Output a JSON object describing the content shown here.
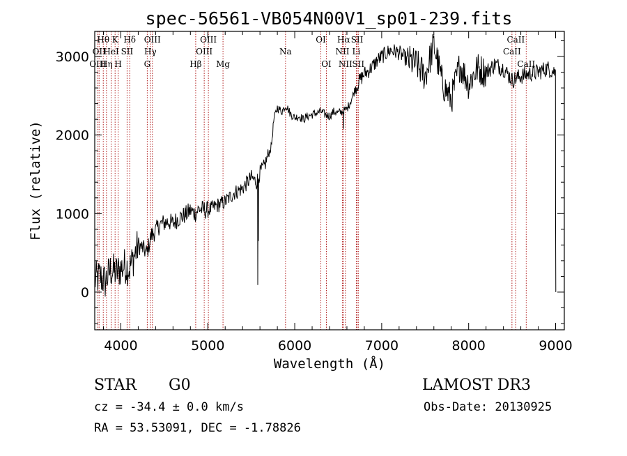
{
  "chart_data": {
    "type": "line",
    "title": "spec-56561-VB054N00V1_sp01-239.fits",
    "xlabel": "Wavelength (Å)",
    "ylabel": "Flux (relative)",
    "xlim": [
      3700,
      9100
    ],
    "ylim": [
      -480,
      3320
    ],
    "x_ticks": [
      4000,
      5000,
      6000,
      7000,
      8000,
      9000
    ],
    "y_ticks": [
      0,
      1000,
      2000,
      3000
    ],
    "spectrum_anchors": [
      [
        3700,
        150
      ],
      [
        3760,
        200
      ],
      [
        3820,
        130
      ],
      [
        3880,
        280
      ],
      [
        3950,
        250
      ],
      [
        4000,
        300
      ],
      [
        4050,
        340
      ],
      [
        4100,
        300
      ],
      [
        4150,
        450
      ],
      [
        4200,
        600
      ],
      [
        4250,
        560
      ],
      [
        4300,
        500
      ],
      [
        4350,
        720
      ],
      [
        4400,
        780
      ],
      [
        4450,
        860
      ],
      [
        4500,
        880
      ],
      [
        4550,
        900
      ],
      [
        4600,
        870
      ],
      [
        4650,
        930
      ],
      [
        4700,
        960
      ],
      [
        4750,
        990
      ],
      [
        4800,
        1040
      ],
      [
        4850,
        1000
      ],
      [
        4900,
        1060
      ],
      [
        5000,
        1040
      ],
      [
        5100,
        1100
      ],
      [
        5200,
        1150
      ],
      [
        5300,
        1260
      ],
      [
        5400,
        1320
      ],
      [
        5500,
        1460
      ],
      [
        5560,
        1400
      ],
      [
        5600,
        1520
      ],
      [
        5650,
        1600
      ],
      [
        5680,
        1700
      ],
      [
        5700,
        1760
      ],
      [
        5730,
        1850
      ],
      [
        5760,
        2200
      ],
      [
        5800,
        2350
      ],
      [
        5850,
        2300
      ],
      [
        5900,
        2380
      ],
      [
        5950,
        2270
      ],
      [
        6000,
        2220
      ],
      [
        6050,
        2240
      ],
      [
        6100,
        2200
      ],
      [
        6150,
        2240
      ],
      [
        6200,
        2260
      ],
      [
        6250,
        2280
      ],
      [
        6300,
        2300
      ],
      [
        6350,
        2260
      ],
      [
        6400,
        2240
      ],
      [
        6450,
        2300
      ],
      [
        6500,
        2280
      ],
      [
        6550,
        2300
      ],
      [
        6600,
        2330
      ],
      [
        6650,
        2450
      ],
      [
        6700,
        2600
      ],
      [
        6750,
        2700
      ],
      [
        6800,
        2780
      ],
      [
        6850,
        2820
      ],
      [
        6900,
        2880
      ],
      [
        6950,
        2950
      ],
      [
        7000,
        3000
      ],
      [
        7100,
        3080
      ],
      [
        7200,
        3050
      ],
      [
        7300,
        2950
      ],
      [
        7400,
        2900
      ],
      [
        7500,
        2750
      ],
      [
        7600,
        3150
      ],
      [
        7700,
        2650
      ],
      [
        7800,
        2450
      ],
      [
        7900,
        2900
      ],
      [
        8000,
        2650
      ],
      [
        8100,
        2850
      ],
      [
        8200,
        2800
      ],
      [
        8300,
        2900
      ],
      [
        8400,
        2850
      ],
      [
        8500,
        2700
      ],
      [
        8600,
        2750
      ],
      [
        8700,
        2780
      ],
      [
        8800,
        2800
      ],
      [
        8900,
        2850
      ],
      [
        9000,
        2800
      ]
    ],
    "spectrum_features": [
      {
        "x": 5575,
        "y": 90
      },
      {
        "x": 5582,
        "y": 650
      },
      {
        "x": 6563,
        "y": 2080
      },
      {
        "x": 6566,
        "y": 2350
      },
      {
        "x": 9000,
        "y": 830
      },
      {
        "x": 9002,
        "y": 0
      }
    ],
    "line_markers": [
      {
        "x": 3734,
        "labels": [
          {
            "text": "OIII",
            "row": 3
          }
        ]
      },
      {
        "x": 3750,
        "labels": [
          {
            "text": "OII",
            "row": 2
          }
        ]
      },
      {
        "x": 3798,
        "labels": [
          {
            "text": "Hθ",
            "row": 1
          }
        ]
      },
      {
        "x": 3835,
        "labels": [
          {
            "text": "Hη",
            "row": 3
          }
        ]
      },
      {
        "x": 3889,
        "labels": [
          {
            "text": "HeI",
            "row": 2
          }
        ]
      },
      {
        "x": 3934,
        "labels": [
          {
            "text": "K",
            "row": 1
          }
        ]
      },
      {
        "x": 3969,
        "labels": [
          {
            "text": "H",
            "row": 3
          }
        ]
      },
      {
        "x": 4072,
        "labels": [
          {
            "text": "SII",
            "row": 2
          }
        ]
      },
      {
        "x": 4102,
        "labels": [
          {
            "text": "Hδ",
            "row": 1
          }
        ]
      },
      {
        "x": 4304,
        "labels": [
          {
            "text": "G",
            "row": 3
          }
        ]
      },
      {
        "x": 4340,
        "labels": [
          {
            "text": "Hγ",
            "row": 2
          }
        ]
      },
      {
        "x": 4363,
        "labels": [
          {
            "text": "OIII",
            "row": 1
          }
        ]
      },
      {
        "x": 4861,
        "labels": [
          {
            "text": "Hβ",
            "row": 3
          }
        ]
      },
      {
        "x": 4959,
        "labels": [
          {
            "text": "OIII",
            "row": 2
          }
        ]
      },
      {
        "x": 5007,
        "labels": [
          {
            "text": "OIII",
            "row": 1
          }
        ]
      },
      {
        "x": 5175,
        "labels": [
          {
            "text": "Mg",
            "row": 3
          }
        ]
      },
      {
        "x": 5894,
        "labels": [
          {
            "text": "Na",
            "row": 2
          }
        ]
      },
      {
        "x": 6300,
        "labels": [
          {
            "text": "OI",
            "row": 1
          }
        ]
      },
      {
        "x": 6364,
        "labels": [
          {
            "text": "OI",
            "row": 3
          }
        ]
      },
      {
        "x": 6548,
        "labels": [
          {
            "text": "NII",
            "row": 2
          }
        ]
      },
      {
        "x": 6563,
        "labels": [
          {
            "text": "Hα",
            "row": 1
          }
        ]
      },
      {
        "x": 6583,
        "labels": [
          {
            "text": "NII",
            "row": 3
          }
        ]
      },
      {
        "x": 6708,
        "labels": [
          {
            "text": "Li",
            "row": 2
          }
        ]
      },
      {
        "x": 6717,
        "labels": [
          {
            "text": "SII",
            "row": 1
          }
        ]
      },
      {
        "x": 6731,
        "labels": [
          {
            "text": "SII",
            "row": 3
          }
        ]
      },
      {
        "x": 8498,
        "labels": [
          {
            "text": "CaII",
            "row": 2
          }
        ]
      },
      {
        "x": 8542,
        "labels": [
          {
            "text": "CaII",
            "row": 1
          }
        ]
      },
      {
        "x": 8662,
        "labels": [
          {
            "text": "CaII",
            "row": 3
          }
        ]
      }
    ]
  },
  "info": {
    "object_class": "STAR",
    "subclass": "G0",
    "survey": "LAMOST DR3",
    "cz": "cz = -34.4 ± 0.0 km/s",
    "obs_date": "Obs-Date: 20130925",
    "coords": "RA =  53.53091, DEC =  -1.78826"
  },
  "colors": {
    "line_marker": "#b22222",
    "spectrum": "#000000",
    "axes": "#000000"
  }
}
